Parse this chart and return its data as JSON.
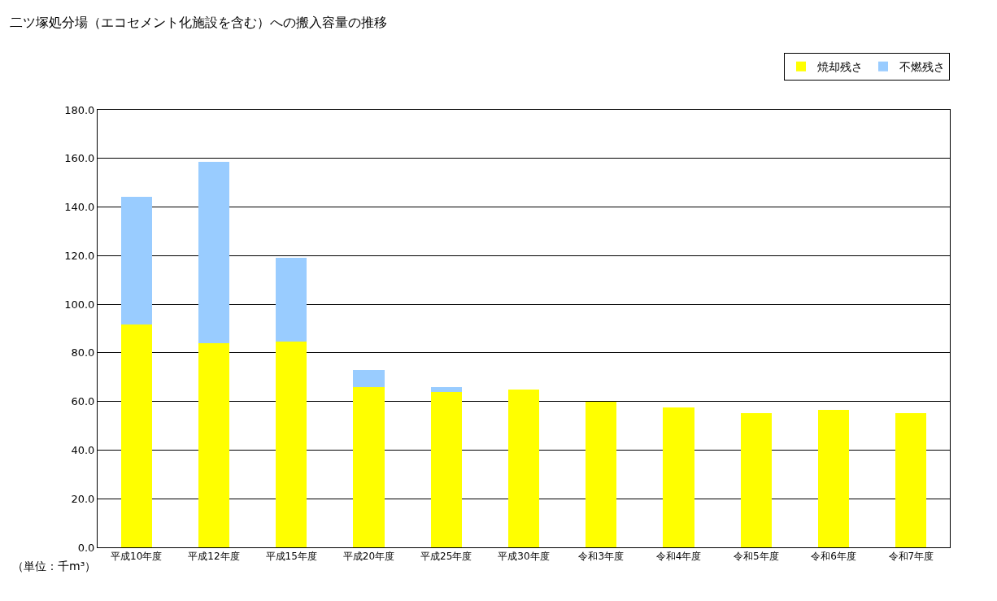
{
  "chart_data": {
    "type": "bar",
    "title": "二ツ塚処分場（エコセメント化施設を含む）への搬入容量の推移",
    "stacked": true,
    "categories": [
      "平成10年度",
      "平成12年度",
      "平成15年度",
      "平成20年度",
      "平成25年度",
      "平成30年度",
      "令和3年度",
      "令和4年度",
      "令和5年度",
      "令和6年度",
      "令和7年度"
    ],
    "series": [
      {
        "name": "焼却残さ",
        "color": "#ffff00",
        "values": [
          91.7,
          84.1,
          84.8,
          66.0,
          64.0,
          65.0,
          60.0,
          57.7,
          55.3,
          56.7,
          55.3
        ]
      },
      {
        "name": "不燃残さ",
        "color": "#99ccff",
        "values": [
          52.6,
          74.6,
          34.3,
          7.1,
          2.0,
          null,
          null,
          null,
          null,
          null,
          null
        ]
      }
    ],
    "ylim": [
      0,
      180
    ],
    "yticks": [
      {
        "value": 0,
        "label": "0.0"
      },
      {
        "value": 20,
        "label": "20.0"
      },
      {
        "value": 40,
        "label": "40.0"
      },
      {
        "value": 60,
        "label": "60.0"
      },
      {
        "value": 80,
        "label": "80.0"
      },
      {
        "value": 100,
        "label": "100.0"
      },
      {
        "value": 120,
        "label": "120.0"
      },
      {
        "value": 140,
        "label": "140.0"
      },
      {
        "value": 160,
        "label": "160.0"
      },
      {
        "value": 180,
        "label": "180.0"
      }
    ],
    "grid": "y",
    "legend": "top right",
    "annotations": [
      "（単位：千m³）"
    ]
  }
}
